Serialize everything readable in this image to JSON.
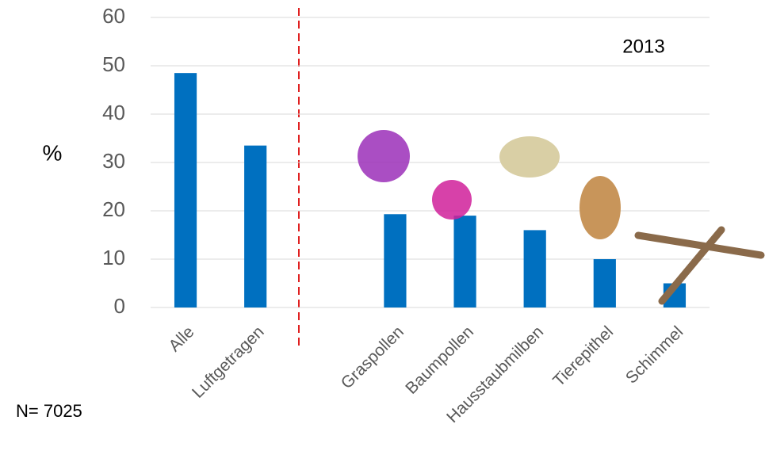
{
  "chart_data": {
    "type": "bar",
    "y_label": "%",
    "annotation": "2013",
    "note": "N= 7025",
    "categories": [
      "Alle",
      "Luftgetragen",
      null,
      "Graspollen",
      "Baumpollen",
      "Hausstaubmilben",
      "Tierepithel",
      "Schimmel"
    ],
    "values": [
      48.5,
      33.5,
      null,
      19.3,
      19,
      16,
      10,
      5
    ],
    "color": "#0070c0",
    "ylim": [
      0,
      60
    ],
    "yticks": [
      0,
      10,
      20,
      30,
      40,
      50,
      60
    ],
    "grid": true
  }
}
